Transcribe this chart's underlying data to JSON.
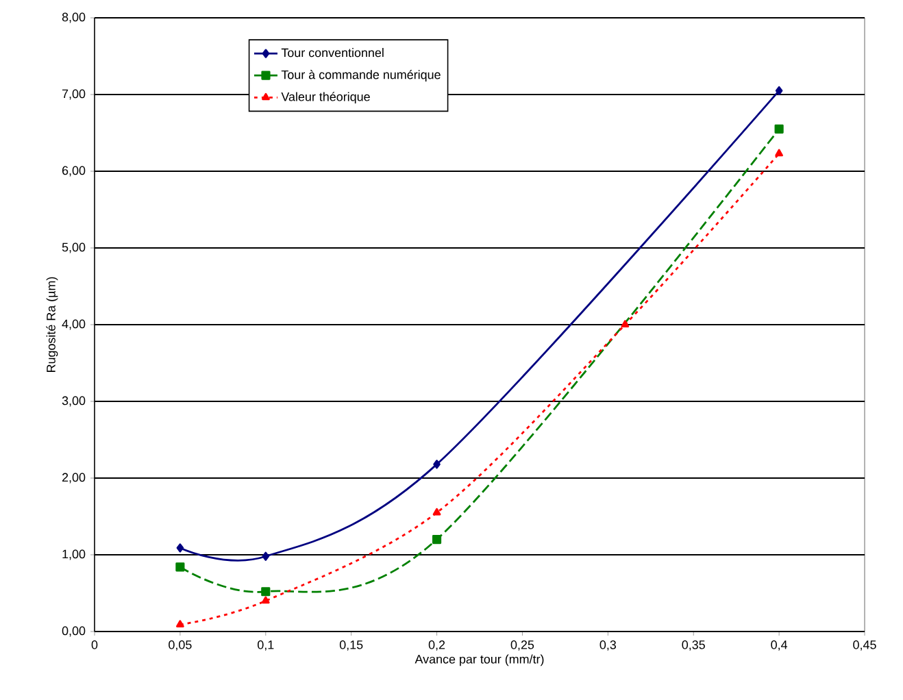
{
  "chart_data": {
    "type": "line",
    "xlabel": "Avance par tour  (mm/tr)",
    "ylabel": "Rugosité Ra (µm)",
    "xlim": [
      0,
      0.45
    ],
    "ylim": [
      0,
      8
    ],
    "xticks": [
      {
        "value": 0,
        "label": "0"
      },
      {
        "value": 0.05,
        "label": "0,05"
      },
      {
        "value": 0.1,
        "label": "0,1"
      },
      {
        "value": 0.15,
        "label": "0,15"
      },
      {
        "value": 0.2,
        "label": "0,2"
      },
      {
        "value": 0.25,
        "label": "0,25"
      },
      {
        "value": 0.3,
        "label": "0,3"
      },
      {
        "value": 0.35,
        "label": "0,35"
      },
      {
        "value": 0.4,
        "label": "0,4"
      },
      {
        "value": 0.45,
        "label": "0,45"
      }
    ],
    "yticks": [
      {
        "value": 0,
        "label": "0,00"
      },
      {
        "value": 1,
        "label": "1,00"
      },
      {
        "value": 2,
        "label": "2,00"
      },
      {
        "value": 3,
        "label": "3,00"
      },
      {
        "value": 4,
        "label": "4,00"
      },
      {
        "value": 5,
        "label": "5,00"
      },
      {
        "value": 6,
        "label": "6,00"
      },
      {
        "value": 7,
        "label": "7,00"
      },
      {
        "value": 8,
        "label": "8,00"
      }
    ],
    "grid": "y",
    "legend": "top left",
    "series": [
      {
        "name": "Tour conventionnel",
        "color": "#000080",
        "marker": "diamond",
        "line_style": "solid",
        "x": [
          0.05,
          0.1,
          0.2,
          0.4
        ],
        "values": [
          1.09,
          0.98,
          2.18,
          7.05
        ]
      },
      {
        "name": "Tour à commande numérique",
        "color": "#008000",
        "marker": "square",
        "line_style": "dashed",
        "x": [
          0.05,
          0.1,
          0.2,
          0.4
        ],
        "values": [
          0.84,
          0.52,
          1.2,
          6.55
        ]
      },
      {
        "name": "Valeur théorique",
        "color": "#ff0000",
        "marker": "triangle",
        "line_style": "dotted",
        "x": [
          0.05,
          0.1,
          0.2,
          0.31,
          0.4
        ],
        "values": [
          0.09,
          0.4,
          1.55,
          4.0,
          6.23
        ]
      }
    ]
  }
}
